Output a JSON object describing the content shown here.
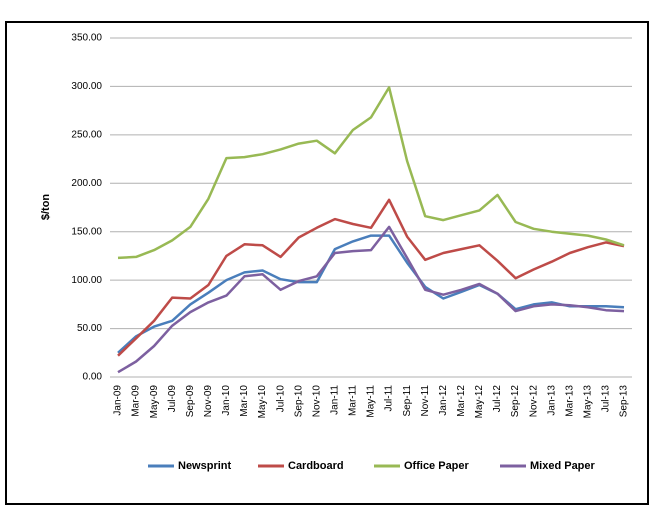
{
  "chart_data": {
    "type": "line",
    "y_label": "$/ton",
    "categories": [
      "Jan-09",
      "Mar-09",
      "May-09",
      "Jul-09",
      "Sep-09",
      "Nov-09",
      "Jan-10",
      "Mar-10",
      "May-10",
      "Jul-10",
      "Sep-10",
      "Nov-10",
      "Jan-11",
      "Mar-11",
      "May-11",
      "Jul-11",
      "Sep-11",
      "Nov-11",
      "Jan-12",
      "Mar-12",
      "May-12",
      "Jul-12",
      "Sep-12",
      "Nov-12",
      "Jan-13",
      "Mar-13",
      "May-13",
      "Jul-13",
      "Sep-13"
    ],
    "series": [
      {
        "name": "Newsprint",
        "color": "#4a7ebb",
        "values": [
          25,
          42,
          52,
          58,
          75,
          87,
          100,
          108,
          110,
          101,
          98,
          98,
          132,
          140,
          146,
          146,
          118,
          93,
          81,
          88,
          95,
          86,
          70,
          75,
          77,
          73,
          73,
          73,
          72
        ]
      },
      {
        "name": "Cardboard",
        "color": "#be4b48",
        "values": [
          22,
          40,
          58,
          82,
          81,
          95,
          125,
          137,
          136,
          124,
          144,
          154,
          163,
          158,
          154,
          183,
          145,
          121,
          128,
          132,
          136,
          120,
          102,
          111,
          119,
          128,
          134,
          139,
          135
        ]
      },
      {
        "name": "Office Paper",
        "color": "#98b954",
        "values": [
          123,
          124,
          131,
          141,
          155,
          184,
          226,
          227,
          230,
          235,
          241,
          244,
          231,
          255,
          268,
          299,
          223,
          166,
          162,
          167,
          172,
          188,
          160,
          153,
          150,
          148,
          146,
          142,
          136
        ]
      },
      {
        "name": "Mixed Paper",
        "color": "#7d60a0",
        "values": [
          5,
          16,
          32,
          53,
          67,
          77,
          84,
          104,
          106,
          90,
          99,
          104,
          128,
          130,
          131,
          155,
          123,
          90,
          85,
          90,
          96,
          86,
          68,
          73,
          75,
          74,
          72,
          69,
          68
        ]
      }
    ],
    "ylim": [
      0,
      350
    ],
    "yticks": [
      {
        "value": 0,
        "label": "0.00"
      },
      {
        "value": 50,
        "label": "50.00"
      },
      {
        "value": 100,
        "label": "100.00"
      },
      {
        "value": 150,
        "label": "150.00"
      },
      {
        "value": 200,
        "label": "200.00"
      },
      {
        "value": 250,
        "label": "250.00"
      },
      {
        "value": 300,
        "label": "300.00"
      },
      {
        "value": 350,
        "label": "350.00"
      }
    ],
    "grid": true,
    "legend": "bottom"
  }
}
